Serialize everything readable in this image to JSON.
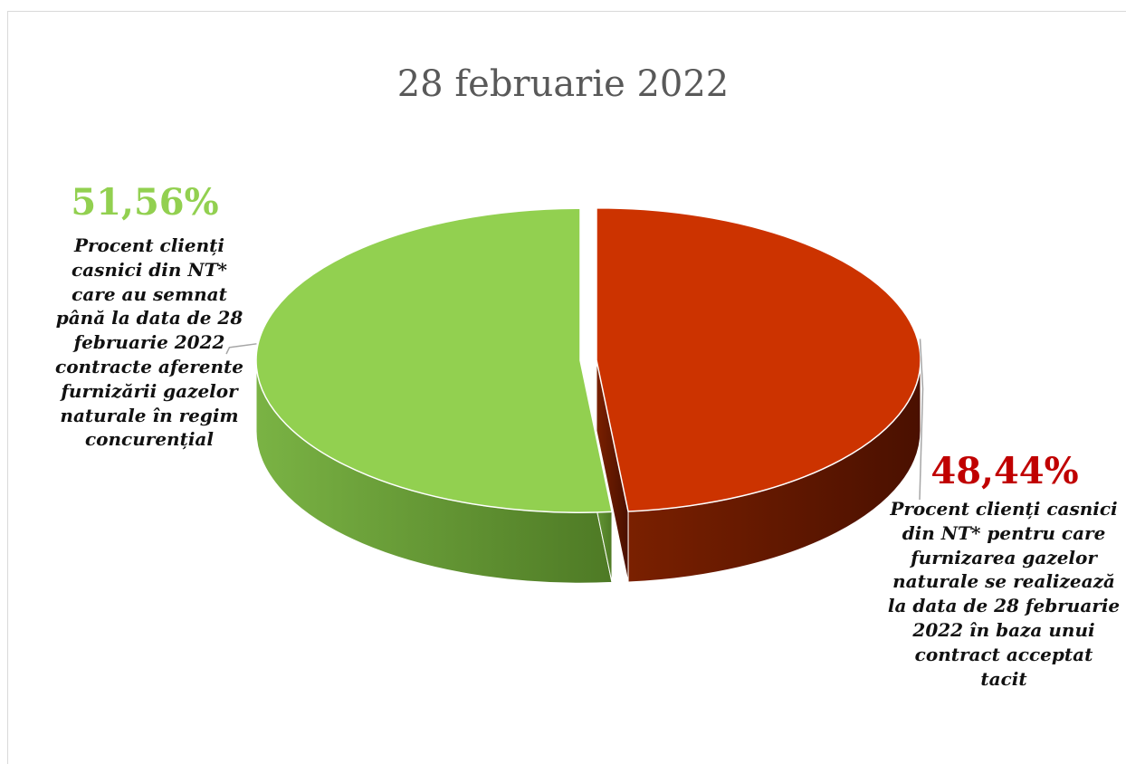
{
  "chart_data": {
    "type": "pie",
    "title": "28 februarie 2022",
    "slices": [
      {
        "value": 51.56,
        "value_label": "51,56%",
        "label": "Procent clienți casnici din NT* care au semnat până la data de 28 februarie 2022 contracte aferente furnizării gazelor naturale în regim concurențial",
        "label_lines": "Procent clienți\ncasnici din NT*\ncare au semnat\npână la data de 28\nfebruarie 2022\ncontracte aferente\nfurnizării gazelor\nnaturale în regim\nconcurențial",
        "color": "#92d050",
        "side_color": "#5f8e30"
      },
      {
        "value": 48.44,
        "value_label": "48,44%",
        "label": "Procent clienți casnici din NT* pentru care furnizarea gazelor naturale se realizează la data de 28 februarie 2022 în baza unui contract acceptat tacit",
        "label_lines": "Procent clienți casnici\ndin NT* pentru care\nfurnizarea gazelor\nnaturale se realizează\nla data de 28 februarie\n2022 în baza unui\ncontract acceptat\ntacit",
        "color": "#cc3300",
        "side_color": "#6b1a00"
      }
    ],
    "style": "3d-exploded",
    "legend": "none"
  },
  "colors": {
    "green_label": "#92d050",
    "red_label": "#c00000",
    "title": "#595959"
  }
}
